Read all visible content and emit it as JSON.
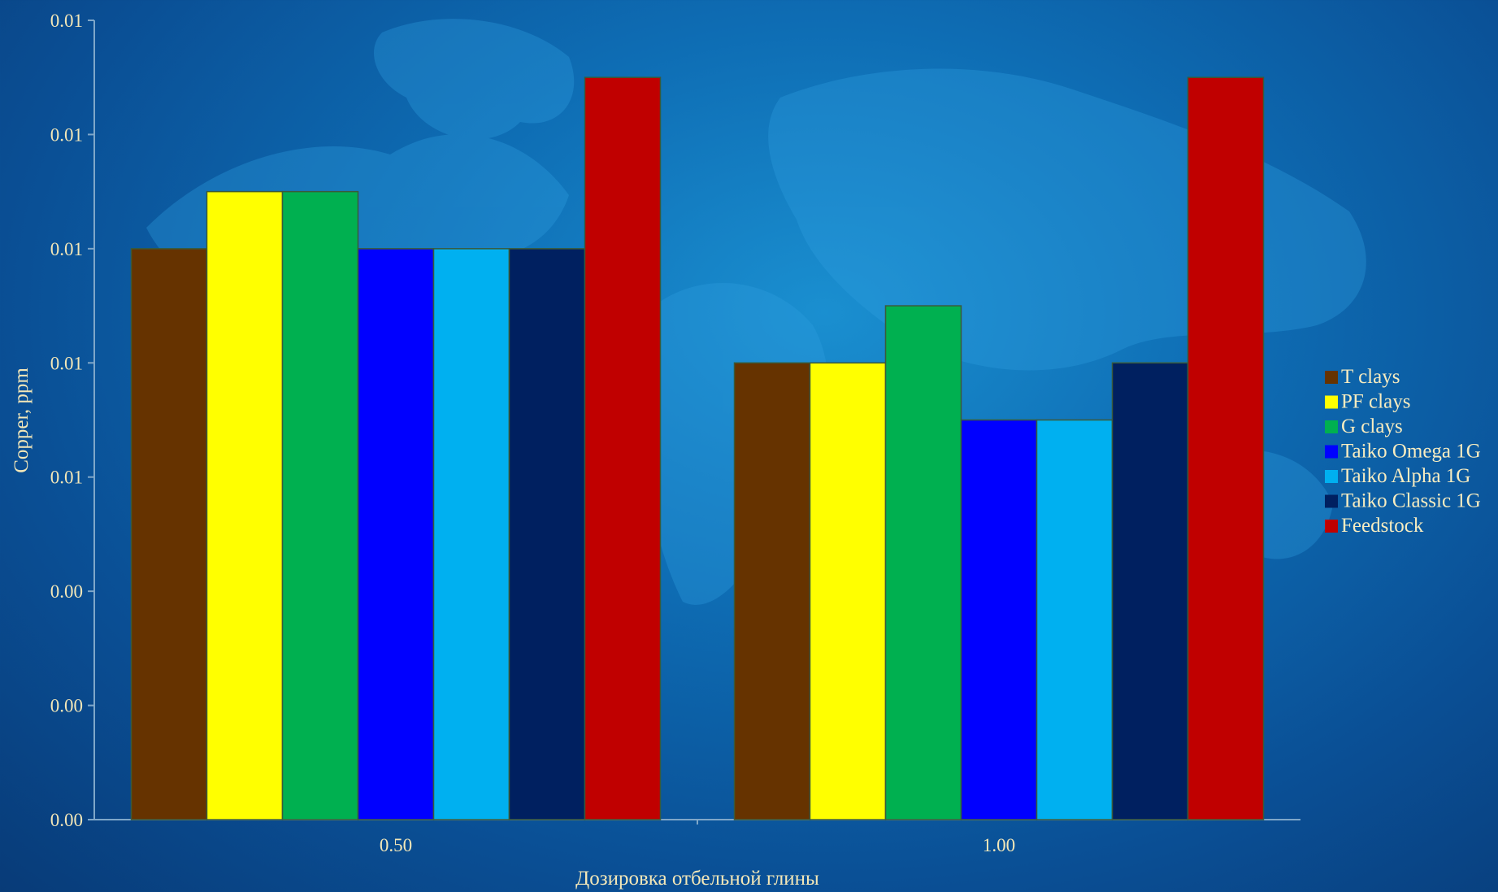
{
  "chart_data": {
    "type": "bar",
    "title": "",
    "xlabel": "Дозировка отбельной глины",
    "ylabel": "Copper, ppm",
    "categories": [
      "0.50",
      "1.00"
    ],
    "y_tick_labels": [
      "0.00",
      "0.00",
      "0.00",
      "0.01",
      "0.01",
      "0.01",
      "0.01",
      "0.01"
    ],
    "ylim": [
      0,
      0.014
    ],
    "grid": false,
    "legend_position": "right",
    "series": [
      {
        "name": "T clays",
        "color": "#663300",
        "values": [
          0.01,
          0.008
        ]
      },
      {
        "name": "PF clays",
        "color": "#ffff00",
        "values": [
          0.011,
          0.008
        ]
      },
      {
        "name": "G clays",
        "color": "#00b050",
        "values": [
          0.011,
          0.009
        ]
      },
      {
        "name": "Taiko Omega 1G",
        "color": "#0000ff",
        "values": [
          0.01,
          0.007
        ]
      },
      {
        "name": "Taiko Alpha 1G",
        "color": "#00b0f0",
        "values": [
          0.01,
          0.007
        ]
      },
      {
        "name": "Taiko Classic 1G",
        "color": "#002060",
        "values": [
          0.01,
          0.008
        ]
      },
      {
        "name": "Feedstock",
        "color": "#c00000",
        "values": [
          0.013,
          0.013
        ]
      }
    ]
  }
}
